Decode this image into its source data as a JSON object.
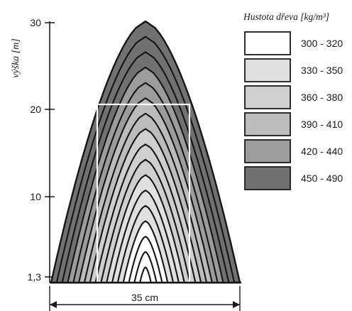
{
  "axis": {
    "ylabel": "výška [m]",
    "ticks": [
      {
        "label": "30",
        "value": 30
      },
      {
        "label": "20",
        "value": 20
      },
      {
        "label": "10",
        "value": 10
      },
      {
        "label": "1,3",
        "value": 1.3
      }
    ],
    "base_label": "35 cm"
  },
  "legend": {
    "title": "Hustota dřeva [kg/m³]",
    "items": [
      {
        "label": "300 - 320",
        "color": "#ffffff"
      },
      {
        "label": "330 - 350",
        "color": "#e0e0e0"
      },
      {
        "label": "360 - 380",
        "color": "#cfcfcf"
      },
      {
        "label": "390 - 410",
        "color": "#bcbcbc"
      },
      {
        "label": "420 - 440",
        "color": "#9c9c9c"
      },
      {
        "label": "450 - 490",
        "color": "#717171"
      }
    ]
  },
  "ring_count": 17
}
